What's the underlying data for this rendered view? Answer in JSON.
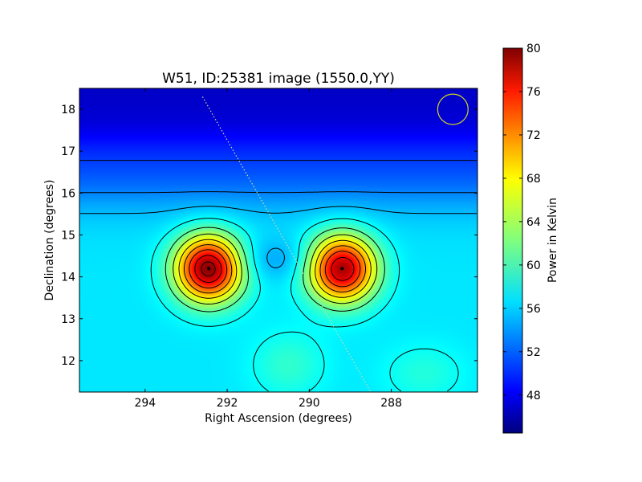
{
  "chart_data": {
    "type": "heatmap",
    "title": "W51, ID:25381 image (1550.0,YY)",
    "xlabel": "Right Ascension (degrees)",
    "ylabel": "Declination (degrees)",
    "xlim": [
      295.6,
      285.9
    ],
    "ylim": [
      11.25,
      18.5
    ],
    "x_ticks": [
      {
        "value": 294,
        "label": "294"
      },
      {
        "value": 292,
        "label": "292"
      },
      {
        "value": 290,
        "label": "290"
      },
      {
        "value": 288,
        "label": "288"
      }
    ],
    "y_ticks": [
      {
        "value": 12,
        "label": "12"
      },
      {
        "value": 13,
        "label": "13"
      },
      {
        "value": 14,
        "label": "14"
      },
      {
        "value": 15,
        "label": "15"
      },
      {
        "value": 16,
        "label": "16"
      },
      {
        "value": 17,
        "label": "17"
      },
      {
        "value": 18,
        "label": "18"
      }
    ],
    "colormap": "jet",
    "colorbar": {
      "label": "Power in Kelvin",
      "range": [
        44.5,
        80
      ],
      "ticks": [
        {
          "value": 48,
          "label": "48"
        },
        {
          "value": 52,
          "label": "52"
        },
        {
          "value": 56,
          "label": "56"
        },
        {
          "value": 60,
          "label": "60"
        },
        {
          "value": 64,
          "label": "64"
        },
        {
          "value": 68,
          "label": "68"
        },
        {
          "value": 72,
          "label": "72"
        },
        {
          "value": 76,
          "label": "76"
        },
        {
          "value": 80,
          "label": "80"
        }
      ]
    },
    "sources": [
      {
        "ra": 292.45,
        "dec": 14.2,
        "peak": 80
      },
      {
        "ra": 289.2,
        "dec": 14.2,
        "peak": 79
      }
    ],
    "background_level": 57,
    "contours": true,
    "beam_circle": {
      "ra": 286.5,
      "dec": 18.0,
      "radius_deg": 0.37,
      "color": "#d4d420"
    },
    "galactic_plane_line": {
      "from": [
        292.6,
        18.3
      ],
      "to": [
        288.5,
        11.25
      ]
    },
    "grid": false
  }
}
